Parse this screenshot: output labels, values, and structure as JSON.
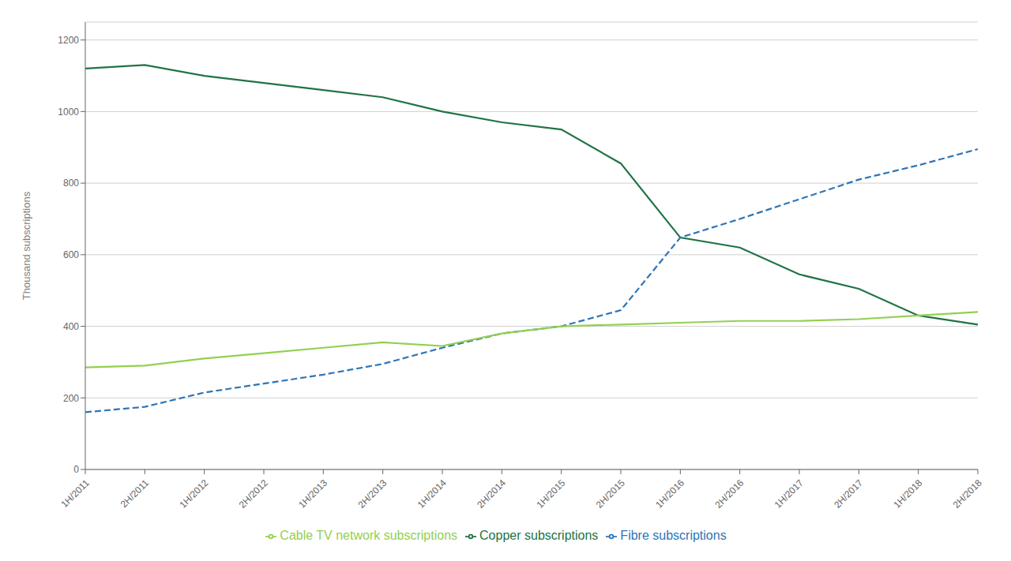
{
  "chart_data": {
    "type": "line",
    "ylabel": "Thousand subscriptions",
    "categories": [
      "1H/2011",
      "2H/2011",
      "1H/2012",
      "2H/2012",
      "1H/2013",
      "2H/2013",
      "1H/2014",
      "2H/2014",
      "1H/2015",
      "2H/2015",
      "1H/2016",
      "2H/2016",
      "1H/2017",
      "2H/2017",
      "1H/2018",
      "2H/2018"
    ],
    "series": [
      {
        "name": "Copper subscriptions",
        "color": "#217346",
        "line_style": "solid",
        "values": [
          1120,
          1130,
          1100,
          1080,
          1060,
          1040,
          1000,
          970,
          950,
          855,
          648,
          620,
          545,
          505,
          430,
          405
        ]
      },
      {
        "name": "Fibre subscriptions",
        "color": "#2E75B6",
        "line_style": "dashed",
        "values": [
          160,
          175,
          215,
          240,
          265,
          295,
          340,
          380,
          400,
          445,
          648,
          700,
          755,
          810,
          850,
          895
        ]
      },
      {
        "name": "Cable TV network subscriptions",
        "color": "#92D050",
        "line_style": "solid",
        "values": [
          285,
          290,
          310,
          325,
          340,
          355,
          345,
          380,
          400,
          405,
          410,
          415,
          415,
          420,
          430,
          440
        ]
      }
    ],
    "ylim": [
      0,
      1250
    ],
    "yticks": [
      0,
      200,
      400,
      600,
      800,
      1000,
      1200
    ],
    "grid": true,
    "legend": "bottom"
  }
}
